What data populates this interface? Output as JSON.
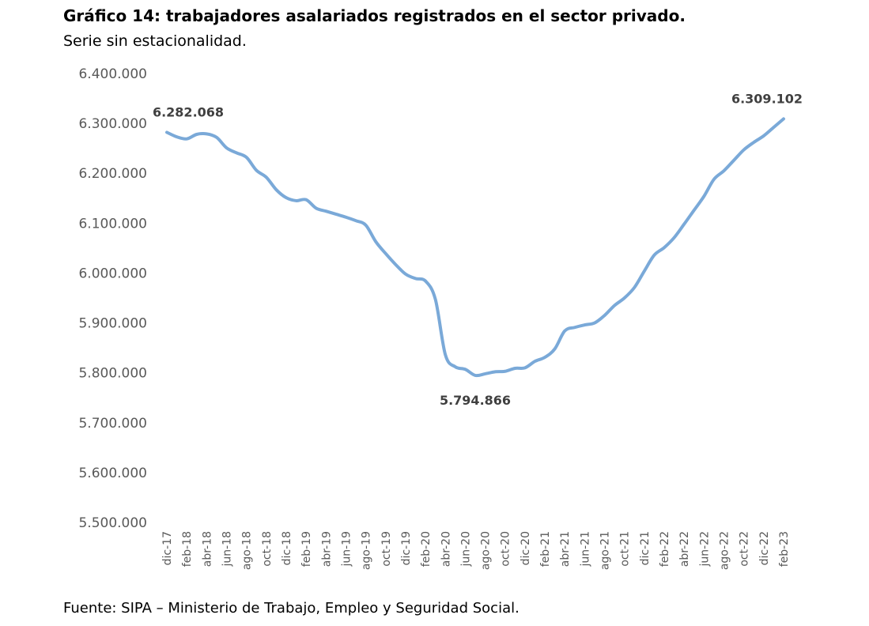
{
  "title": "Gráfico 14: trabajadores asalariados registrados en el sector privado.",
  "subtitle": "Serie sin estacionalidad.",
  "source": "Fuente: SIPA – Ministerio de Trabajo, Empleo y Seguridad Social.",
  "colors": {
    "line": "#7aa9d8",
    "axis_text": "#595959",
    "label_text": "#404040"
  },
  "chart_data": {
    "type": "line",
    "title": "Gráfico 14: trabajadores asalariados registrados en el sector privado.",
    "subtitle": "Serie sin estacionalidad.",
    "xlabel": "",
    "ylabel": "",
    "ylim": [
      5500000,
      6400000
    ],
    "grid": false,
    "legend": "none",
    "y_ticks": [
      5500000,
      5600000,
      5700000,
      5800000,
      5900000,
      6000000,
      6100000,
      6200000,
      6300000,
      6400000
    ],
    "y_tick_labels": [
      "5.500.000",
      "5.600.000",
      "5.700.000",
      "5.800.000",
      "5.900.000",
      "6.000.000",
      "6.100.000",
      "6.200.000",
      "6.300.000",
      "6.400.000"
    ],
    "x_tick_labels": [
      "dic-17",
      "feb-18",
      "abr-18",
      "jun-18",
      "ago-18",
      "oct-18",
      "dic-18",
      "feb-19",
      "abr-19",
      "jun-19",
      "ago-19",
      "oct-19",
      "dic-19",
      "feb-20",
      "abr-20",
      "jun-20",
      "ago-20",
      "oct-20",
      "dic-20",
      "feb-21",
      "abr-21",
      "jun-21",
      "ago-21",
      "oct-21",
      "dic-21",
      "feb-22",
      "abr-22",
      "jun-22",
      "ago-22",
      "oct-22",
      "dic-22",
      "feb-23"
    ],
    "x": [
      "dic-17",
      "ene-18",
      "feb-18",
      "mar-18",
      "abr-18",
      "may-18",
      "jun-18",
      "jul-18",
      "ago-18",
      "sep-18",
      "oct-18",
      "nov-18",
      "dic-18",
      "ene-19",
      "feb-19",
      "mar-19",
      "abr-19",
      "may-19",
      "jun-19",
      "jul-19",
      "ago-19",
      "sep-19",
      "oct-19",
      "nov-19",
      "dic-19",
      "ene-20",
      "feb-20",
      "mar-20",
      "abr-20",
      "may-20",
      "jun-20",
      "jul-20",
      "ago-20",
      "sep-20",
      "oct-20",
      "nov-20",
      "dic-20",
      "ene-21",
      "feb-21",
      "mar-21",
      "abr-21",
      "may-21",
      "jun-21",
      "jul-21",
      "ago-21",
      "sep-21",
      "oct-21",
      "nov-21",
      "dic-21",
      "ene-22",
      "feb-22",
      "mar-22",
      "abr-22",
      "may-22",
      "jun-22",
      "jul-22",
      "ago-22",
      "sep-22",
      "oct-22",
      "nov-22",
      "dic-22",
      "ene-23",
      "feb-23"
    ],
    "series": [
      {
        "values": [
          6282068,
          6273000,
          6269000,
          6278000,
          6279000,
          6272000,
          6251000,
          6241000,
          6232000,
          6206000,
          6192000,
          6167000,
          6151000,
          6145000,
          6147000,
          6130000,
          6124000,
          6118000,
          6112000,
          6105000,
          6096000,
          6063000,
          6039000,
          6017000,
          5998000,
          5989000,
          5984000,
          5947000,
          5836000,
          5812000,
          5807000,
          5794866,
          5798000,
          5802000,
          5803000,
          5809000,
          5810000,
          5823000,
          5831000,
          5848000,
          5884000,
          5891000,
          5896000,
          5900000,
          5915000,
          5935000,
          5950000,
          5971000,
          6004000,
          6036000,
          6051000,
          6071000,
          6098000,
          6126000,
          6154000,
          6188000,
          6205000,
          6226000,
          6247000,
          6262000,
          6275000,
          6292000,
          6309102
        ]
      }
    ],
    "data_labels": [
      {
        "x": "dic-17",
        "text": "6.282.068"
      },
      {
        "x": "jul-20",
        "text": "5.794.866"
      },
      {
        "x": "feb-23",
        "text": "6.309.102"
      }
    ]
  }
}
